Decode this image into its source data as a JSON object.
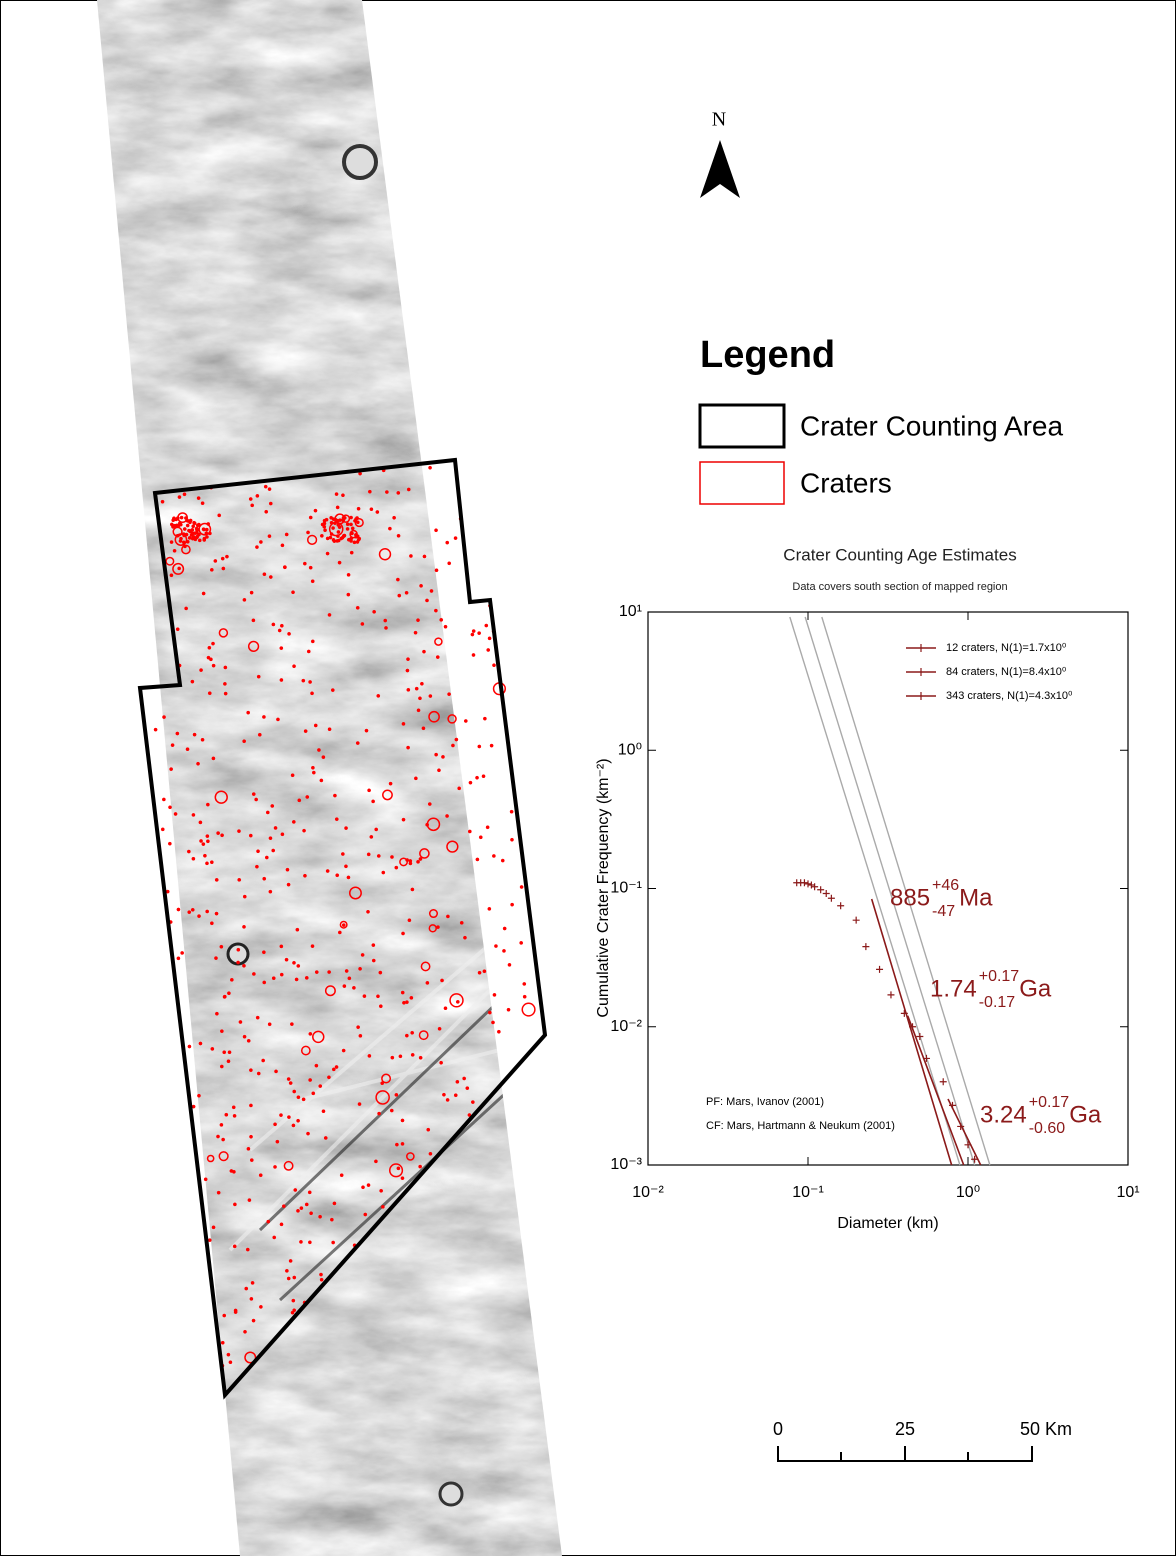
{
  "north_label": "N",
  "legend": {
    "title": "Legend",
    "items": [
      "Crater Counting Area",
      "Craters"
    ]
  },
  "scale_bar": {
    "labels": [
      "0",
      "25",
      "50 Km"
    ]
  },
  "chart_data": {
    "type": "scatter",
    "title": "Crater Counting Age Estimates",
    "subtitle": "Data covers south section of mapped region",
    "x_label": "Diameter (km)",
    "y_label": "Cumulative Crater Frequency (km⁻²)",
    "xscale": "log",
    "yscale": "log",
    "xlim": [
      0.01,
      10
    ],
    "ylim": [
      0.001,
      10
    ],
    "xticks": [
      {
        "value": 0.01,
        "label": "10⁻²"
      },
      {
        "value": 0.1,
        "label": "10⁻¹"
      },
      {
        "value": 1,
        "label": "10⁰"
      },
      {
        "value": 10,
        "label": "10¹"
      }
    ],
    "yticks": [
      {
        "value": 0.001,
        "label": "10⁻³"
      },
      {
        "value": 0.01,
        "label": "10⁻²"
      },
      {
        "value": 0.1,
        "label": "10⁻¹"
      },
      {
        "value": 1,
        "label": "10⁰"
      },
      {
        "value": 10,
        "label": "10¹"
      }
    ],
    "points": {
      "color": "#8b1a1a",
      "x": [
        0.085,
        0.09,
        0.095,
        0.1,
        0.105,
        0.11,
        0.12,
        0.13,
        0.14,
        0.16,
        0.2,
        0.23,
        0.28,
        0.33,
        0.4,
        0.45,
        0.5,
        0.55,
        0.7,
        0.8,
        0.9,
        1.0,
        1.1
      ],
      "values": [
        0.11,
        0.11,
        0.11,
        0.108,
        0.106,
        0.103,
        0.098,
        0.092,
        0.085,
        0.075,
        0.059,
        0.038,
        0.026,
        0.017,
        0.0125,
        0.01,
        0.0085,
        0.0059,
        0.004,
        0.0027,
        0.0019,
        0.0014,
        0.0011
      ]
    },
    "isochrons": {
      "color": "#aaaaaa",
      "lines": [
        {
          "x": [
            0.077,
            0.89
          ],
          "values": [
            9.2,
            0.001
          ]
        },
        {
          "x": [
            0.096,
            1.1
          ],
          "values": [
            9.2,
            0.001
          ]
        },
        {
          "x": [
            0.122,
            1.37
          ],
          "values": [
            9.2,
            0.001
          ]
        }
      ]
    },
    "series": [
      {
        "name": "12 craters, N(1)=1.7x10⁰",
        "color": "#8b1a1a",
        "x": [
          0.25,
          0.79
        ],
        "values": [
          0.084,
          0.001
        ]
      },
      {
        "name": "84 craters, N(1)=8.4x10⁰",
        "color": "#8b1a1a",
        "x": [
          0.42,
          0.94
        ],
        "values": [
          0.012,
          0.001
        ]
      },
      {
        "name": "343 craters, N(1)=4.3x10⁰",
        "color": "#8b1a1a",
        "x": [
          0.75,
          1.2
        ],
        "values": [
          0.003,
          0.001
        ]
      }
    ],
    "ages": [
      {
        "value": "885",
        "plus": "+46",
        "minus": "-47",
        "unit": "Ma"
      },
      {
        "value": "1.74",
        "plus": "+0.17",
        "minus": "-0.17",
        "unit": "Ga"
      },
      {
        "value": "3.24",
        "plus": "+0.17",
        "minus": "-0.60",
        "unit": "Ga"
      }
    ],
    "notes": [
      "PF: Mars, Ivanov (2001)",
      "CF: Mars, Hartmann & Neukum (2001)"
    ]
  }
}
